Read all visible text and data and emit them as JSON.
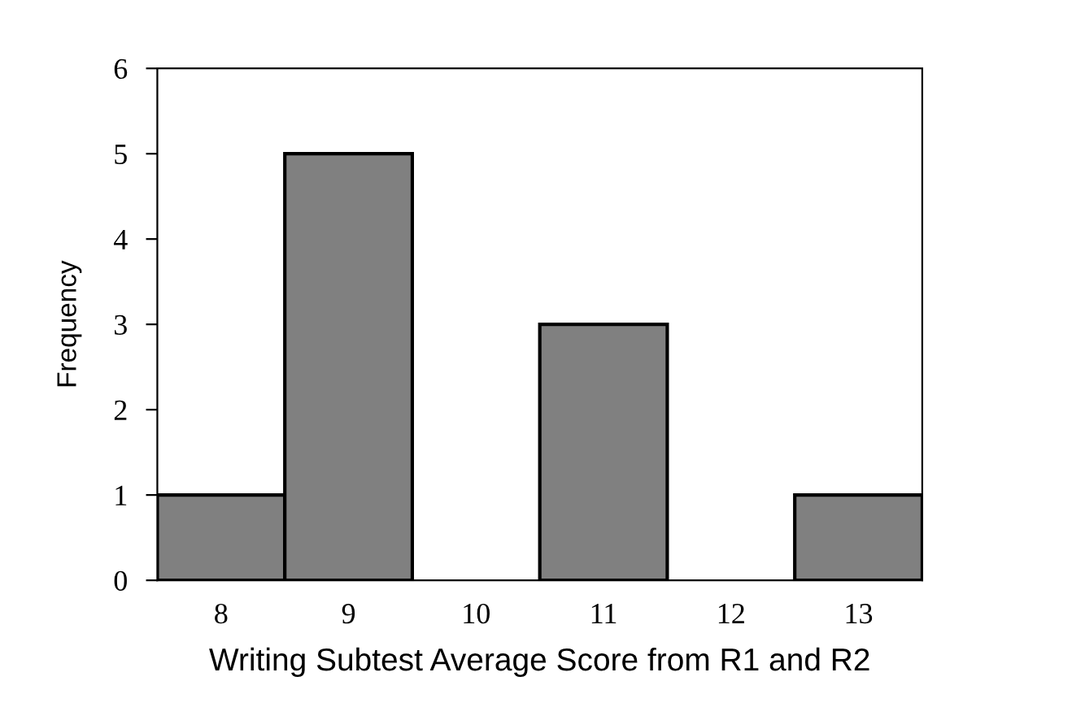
{
  "chart_data": {
    "type": "bar",
    "xlabel": "Writing Subtest Average Score from R1 and R2",
    "ylabel": "Frequency",
    "categories": [
      "8",
      "9",
      "10",
      "11",
      "12",
      "13"
    ],
    "values": [
      1,
      5,
      0,
      3,
      0,
      1
    ],
    "color": "#808080",
    "ylim": [
      0,
      6
    ],
    "yticks": [
      0,
      1,
      2,
      3,
      4,
      5,
      6
    ],
    "grid": false,
    "legend": false
  }
}
